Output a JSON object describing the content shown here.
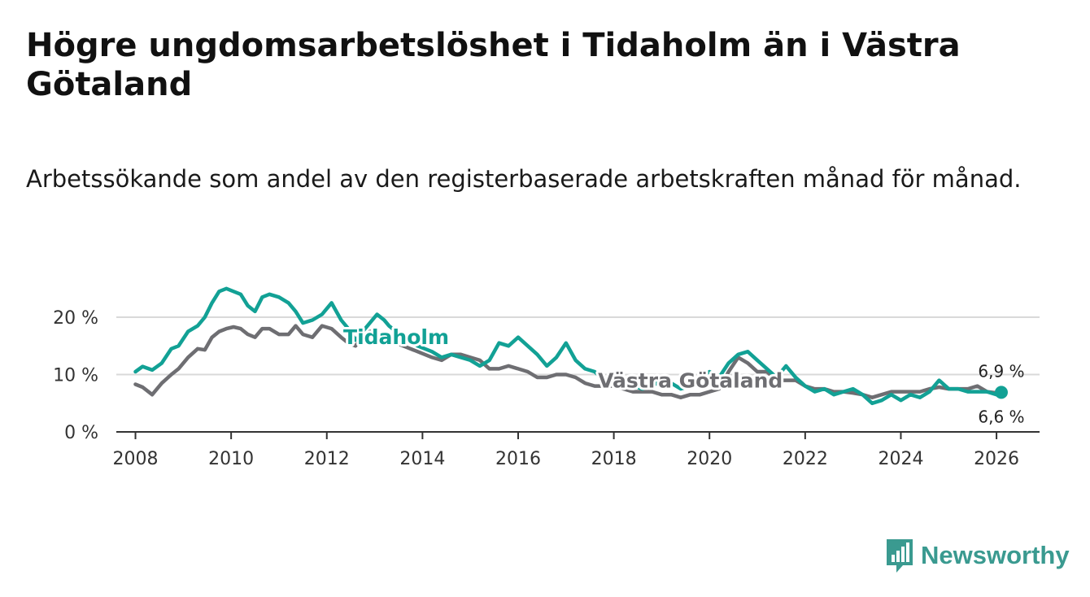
{
  "title": "Högre ungdomsarbetslöshet i Tidaholm än i Västra Götaland",
  "subtitle": "Arbetssökande som andel av den registerbaserade arbetskraften månad för månad.",
  "brand": {
    "name": "Newsworthy",
    "color": "#3a9a90"
  },
  "colors": {
    "tidaholm": "#12a195",
    "vastra": "#6e6e72",
    "grid": "#d9d9d9",
    "axis": "#333333"
  },
  "chart_data": {
    "type": "line",
    "title": "Högre ungdomsarbetslöshet i Tidaholm än i Västra Götaland",
    "xlabel": "",
    "ylabel": "",
    "xlim": [
      2007.6,
      2026.9
    ],
    "ylim": [
      0,
      20
    ],
    "y_ticks": [
      0,
      10,
      20
    ],
    "y_tick_labels": [
      "0 %",
      "10 %",
      "20 %"
    ],
    "x_ticks": [
      2008,
      2010,
      2012,
      2014,
      2016,
      2018,
      2020,
      2022,
      2024,
      2026
    ],
    "x_tick_labels": [
      "2008",
      "2010",
      "2012",
      "2014",
      "2016",
      "2018",
      "2020",
      "2022",
      "2024",
      "2026"
    ],
    "series": [
      {
        "name": "Tidaholm",
        "label": "Tidaholm",
        "end_value_label": "6,9 %",
        "x": [
          2008.0,
          2008.15,
          2008.35,
          2008.55,
          2008.75,
          2008.9,
          2009.1,
          2009.3,
          2009.45,
          2009.6,
          2009.75,
          2009.9,
          2010.05,
          2010.2,
          2010.35,
          2010.5,
          2010.65,
          2010.8,
          2011.0,
          2011.2,
          2011.35,
          2011.5,
          2011.7,
          2011.9,
          2012.1,
          2012.3,
          2012.45,
          2012.6,
          2012.75,
          2012.9,
          2013.05,
          2013.2,
          2013.3,
          2013.6,
          2013.9,
          2014.2,
          2014.4,
          2014.6,
          2014.8,
          2015.0,
          2015.2,
          2015.4,
          2015.6,
          2015.8,
          2016.0,
          2016.2,
          2016.4,
          2016.6,
          2016.8,
          2017.0,
          2017.2,
          2017.4,
          2017.6,
          2017.8,
          2018.0,
          2018.2,
          2018.4,
          2018.6,
          2018.8,
          2019.0,
          2019.2,
          2019.4,
          2019.6,
          2019.8,
          2020.0,
          2020.2,
          2020.4,
          2020.6,
          2020.8,
          2021.0,
          2021.2,
          2021.4,
          2021.6,
          2021.8,
          2022.0,
          2022.2,
          2022.4,
          2022.6,
          2022.8,
          2023.0,
          2023.2,
          2023.4,
          2023.6,
          2023.8,
          2024.0,
          2024.2,
          2024.4,
          2024.6,
          2024.8,
          2025.0,
          2025.2,
          2025.4,
          2025.6,
          2025.8,
          2026.0,
          2026.1
        ],
        "values": [
          10.5,
          11.4,
          10.8,
          12.0,
          14.5,
          15.0,
          17.5,
          18.5,
          20.0,
          22.5,
          24.5,
          25.0,
          24.5,
          24.0,
          22.0,
          21.0,
          23.5,
          24.0,
          23.5,
          22.5,
          21.0,
          19.0,
          19.5,
          20.5,
          22.5,
          19.5,
          18.0,
          16.0,
          17.5,
          19.0,
          20.5,
          19.5,
          18.5,
          16.5,
          15.0,
          14.0,
          13.0,
          13.5,
          13.0,
          12.5,
          11.5,
          12.5,
          15.5,
          15.0,
          16.5,
          15.0,
          13.5,
          11.5,
          13.0,
          15.5,
          12.5,
          11.0,
          10.5,
          9.0,
          8.5,
          8.5,
          8.0,
          7.5,
          8.0,
          9.0,
          8.5,
          7.5,
          8.0,
          9.5,
          10.5,
          9.5,
          12.0,
          13.5,
          14.0,
          12.5,
          11.0,
          9.5,
          11.5,
          9.5,
          8.0,
          7.0,
          7.5,
          6.5,
          7.0,
          7.5,
          6.5,
          5.0,
          5.5,
          6.5,
          5.5,
          6.5,
          6.0,
          7.0,
          9.0,
          7.5,
          7.5,
          7.0,
          7.0,
          7.0,
          6.5,
          6.9
        ]
      },
      {
        "name": "Västra Götaland",
        "label": "Västra Götaland",
        "end_value_label": "6,6 %",
        "x": [
          2008.0,
          2008.15,
          2008.35,
          2008.55,
          2008.75,
          2008.9,
          2009.1,
          2009.3,
          2009.45,
          2009.6,
          2009.75,
          2009.9,
          2010.05,
          2010.2,
          2010.35,
          2010.5,
          2010.65,
          2010.8,
          2011.0,
          2011.2,
          2011.35,
          2011.5,
          2011.7,
          2011.9,
          2012.1,
          2012.3,
          2012.45,
          2012.6,
          2012.75,
          2012.9,
          2013.05,
          2013.2,
          2013.3,
          2013.6,
          2013.9,
          2014.2,
          2014.4,
          2014.6,
          2014.8,
          2015.0,
          2015.2,
          2015.4,
          2015.6,
          2015.8,
          2016.0,
          2016.2,
          2016.4,
          2016.6,
          2016.8,
          2017.0,
          2017.2,
          2017.4,
          2017.6,
          2017.8,
          2018.0,
          2018.2,
          2018.4,
          2018.6,
          2018.8,
          2019.0,
          2019.2,
          2019.4,
          2019.6,
          2019.8,
          2020.0,
          2020.2,
          2020.4,
          2020.6,
          2020.8,
          2021.0,
          2021.2,
          2021.4,
          2021.6,
          2021.8,
          2022.0,
          2022.2,
          2022.4,
          2022.6,
          2022.8,
          2023.0,
          2023.2,
          2023.4,
          2023.6,
          2023.8,
          2024.0,
          2024.2,
          2024.4,
          2024.6,
          2024.8,
          2025.0,
          2025.2,
          2025.4,
          2025.6,
          2025.8,
          2026.0,
          2026.1
        ],
        "values": [
          8.3,
          7.8,
          6.5,
          8.5,
          10.0,
          11.0,
          13.0,
          14.5,
          14.3,
          16.5,
          17.5,
          18.0,
          18.3,
          18.0,
          17.0,
          16.5,
          18.0,
          18.0,
          17.0,
          17.0,
          18.5,
          17.0,
          16.5,
          18.5,
          18.0,
          16.5,
          15.5,
          15.0,
          16.5,
          17.5,
          17.5,
          16.5,
          16.0,
          15.0,
          14.0,
          13.0,
          12.5,
          13.5,
          13.5,
          13.0,
          12.5,
          11.0,
          11.0,
          11.5,
          11.0,
          10.5,
          9.5,
          9.5,
          10.0,
          10.0,
          9.5,
          8.5,
          8.0,
          8.0,
          8.0,
          7.5,
          7.0,
          7.0,
          7.0,
          6.5,
          6.5,
          6.0,
          6.5,
          6.5,
          7.0,
          7.5,
          10.5,
          13.0,
          12.0,
          10.5,
          10.5,
          9.0,
          9.0,
          9.0,
          8.0,
          7.5,
          7.5,
          7.0,
          7.0,
          6.8,
          6.5,
          6.0,
          6.5,
          7.0,
          7.0,
          7.0,
          7.0,
          7.5,
          7.8,
          7.5,
          7.5,
          7.5,
          8.0,
          7.0,
          6.8,
          6.6
        ]
      }
    ]
  }
}
